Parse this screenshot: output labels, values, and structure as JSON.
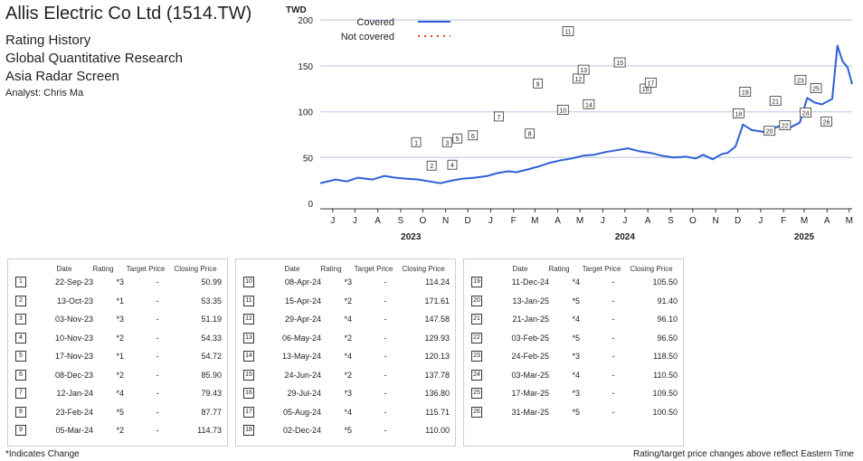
{
  "header": {
    "title": "Allis Electric Co Ltd (1514.TW)",
    "subtitle_lines": [
      "Rating History",
      "Global Quantitative Research",
      "Asia Radar Screen"
    ],
    "analyst": "Analyst: Chris Ma"
  },
  "table_headers": {
    "date": "Date",
    "rating": "Rating",
    "target_price": "Target Price",
    "closing_price": "Closing Price"
  },
  "events": [
    {
      "n": "1",
      "date": "22-Sep-23",
      "rating": "*3",
      "target": "-",
      "close": "50.99"
    },
    {
      "n": "2",
      "date": "13-Oct-23",
      "rating": "*1",
      "target": "-",
      "close": "53.35"
    },
    {
      "n": "3",
      "date": "03-Nov-23",
      "rating": "*3",
      "target": "-",
      "close": "51.19"
    },
    {
      "n": "4",
      "date": "10-Nov-23",
      "rating": "*2",
      "target": "-",
      "close": "54.33"
    },
    {
      "n": "5",
      "date": "17-Nov-23",
      "rating": "*1",
      "target": "-",
      "close": "54.72"
    },
    {
      "n": "6",
      "date": "08-Dec-23",
      "rating": "*2",
      "target": "-",
      "close": "85.90"
    },
    {
      "n": "7",
      "date": "12-Jan-24",
      "rating": "*4",
      "target": "-",
      "close": "79.43"
    },
    {
      "n": "8",
      "date": "23-Feb-24",
      "rating": "*5",
      "target": "-",
      "close": "87.77"
    },
    {
      "n": "9",
      "date": "05-Mar-24",
      "rating": "*2",
      "target": "-",
      "close": "114.73"
    },
    {
      "n": "10",
      "date": "08-Apr-24",
      "rating": "*3",
      "target": "-",
      "close": "114.24"
    },
    {
      "n": "11",
      "date": "15-Apr-24",
      "rating": "*2",
      "target": "-",
      "close": "171.61"
    },
    {
      "n": "12",
      "date": "29-Apr-24",
      "rating": "*4",
      "target": "-",
      "close": "147.58"
    },
    {
      "n": "13",
      "date": "06-May-24",
      "rating": "*2",
      "target": "-",
      "close": "129.93"
    },
    {
      "n": "14",
      "date": "13-May-24",
      "rating": "*4",
      "target": "-",
      "close": "120.13"
    },
    {
      "n": "15",
      "date": "24-Jun-24",
      "rating": "*2",
      "target": "-",
      "close": "137.78"
    },
    {
      "n": "16",
      "date": "29-Jul-24",
      "rating": "*3",
      "target": "-",
      "close": "136.80"
    },
    {
      "n": "17",
      "date": "05-Aug-24",
      "rating": "*4",
      "target": "-",
      "close": "115.71"
    },
    {
      "n": "18",
      "date": "02-Dec-24",
      "rating": "*5",
      "target": "-",
      "close": "110.00"
    },
    {
      "n": "19",
      "date": "11-Dec-24",
      "rating": "*4",
      "target": "-",
      "close": "105.50"
    },
    {
      "n": "20",
      "date": "13-Jan-25",
      "rating": "*5",
      "target": "-",
      "close": "91.40"
    },
    {
      "n": "21",
      "date": "21-Jan-25",
      "rating": "*4",
      "target": "-",
      "close": "96.10"
    },
    {
      "n": "22",
      "date": "03-Feb-25",
      "rating": "*5",
      "target": "-",
      "close": "96.50"
    },
    {
      "n": "23",
      "date": "24-Feb-25",
      "rating": "*3",
      "target": "-",
      "close": "118.50"
    },
    {
      "n": "24",
      "date": "03-Mar-25",
      "rating": "*4",
      "target": "-",
      "close": "110.50"
    },
    {
      "n": "25",
      "date": "17-Mar-25",
      "rating": "*3",
      "target": "-",
      "close": "109.50"
    },
    {
      "n": "26",
      "date": "31-Mar-25",
      "rating": "*5",
      "target": "-",
      "close": "100.50"
    }
  ],
  "footer": {
    "left": "*Indicates Change",
    "right": "Rating/target price changes above reflect Eastern Time"
  },
  "chart_data": {
    "type": "line",
    "unit_label": "TWD",
    "yticks": [
      0,
      50,
      100,
      150,
      200
    ],
    "ylim": [
      0,
      210
    ],
    "xlim": [
      "2023-05-15",
      "2025-05-05"
    ],
    "month_ticks": [
      {
        "label": "J",
        "date": "2023-06-01"
      },
      {
        "label": "J",
        "date": "2023-07-01"
      },
      {
        "label": "A",
        "date": "2023-08-01"
      },
      {
        "label": "S",
        "date": "2023-09-01"
      },
      {
        "label": "O",
        "date": "2023-10-01"
      },
      {
        "label": "N",
        "date": "2023-11-01"
      },
      {
        "label": "D",
        "date": "2023-12-01"
      },
      {
        "label": "J",
        "date": "2024-01-01"
      },
      {
        "label": "F",
        "date": "2024-02-01"
      },
      {
        "label": "M",
        "date": "2024-03-01"
      },
      {
        "label": "A",
        "date": "2024-04-01"
      },
      {
        "label": "M",
        "date": "2024-05-01"
      },
      {
        "label": "J",
        "date": "2024-06-01"
      },
      {
        "label": "J",
        "date": "2024-07-01"
      },
      {
        "label": "A",
        "date": "2024-08-01"
      },
      {
        "label": "S",
        "date": "2024-09-01"
      },
      {
        "label": "O",
        "date": "2024-10-01"
      },
      {
        "label": "N",
        "date": "2024-11-01"
      },
      {
        "label": "D",
        "date": "2024-12-01"
      },
      {
        "label": "J",
        "date": "2025-01-01"
      },
      {
        "label": "F",
        "date": "2025-02-01"
      },
      {
        "label": "M",
        "date": "2025-03-01"
      },
      {
        "label": "A",
        "date": "2025-04-01"
      },
      {
        "label": "M",
        "date": "2025-05-01"
      }
    ],
    "years": [
      {
        "label": "2023",
        "date": "2023-09-15"
      },
      {
        "label": "2024",
        "date": "2024-07-01"
      },
      {
        "label": "2025",
        "date": "2025-03-01"
      }
    ],
    "legend": [
      {
        "name": "Covered",
        "color": "#2d5fd6",
        "style": "solid"
      },
      {
        "name": "Not covered",
        "color": "#e0443a",
        "style": "dotted"
      }
    ],
    "legend_position": "top-left",
    "grid": "horizontal",
    "series": [
      {
        "name": "Covered",
        "color": "#2d5fd6",
        "points": [
          [
            "2023-05-15",
            22
          ],
          [
            "2023-06-05",
            26
          ],
          [
            "2023-06-20",
            24
          ],
          [
            "2023-07-05",
            28
          ],
          [
            "2023-07-25",
            26
          ],
          [
            "2023-08-10",
            30
          ],
          [
            "2023-08-25",
            28
          ],
          [
            "2023-09-08",
            27
          ],
          [
            "2023-09-25",
            26
          ],
          [
            "2023-10-10",
            24
          ],
          [
            "2023-10-25",
            22
          ],
          [
            "2023-11-10",
            25
          ],
          [
            "2023-11-25",
            27
          ],
          [
            "2023-12-10",
            28
          ],
          [
            "2023-12-28",
            30
          ],
          [
            "2024-01-10",
            33
          ],
          [
            "2024-01-25",
            35
          ],
          [
            "2024-02-05",
            34
          ],
          [
            "2024-02-20",
            37
          ],
          [
            "2024-03-05",
            40
          ],
          [
            "2024-03-20",
            44
          ],
          [
            "2024-04-05",
            47
          ],
          [
            "2024-04-20",
            49
          ],
          [
            "2024-05-05",
            52
          ],
          [
            "2024-05-20",
            53
          ],
          [
            "2024-06-05",
            56
          ],
          [
            "2024-06-20",
            58
          ],
          [
            "2024-07-05",
            60
          ],
          [
            "2024-07-20",
            57
          ],
          [
            "2024-08-05",
            55
          ],
          [
            "2024-08-20",
            52
          ],
          [
            "2024-09-05",
            50
          ],
          [
            "2024-09-22",
            51
          ],
          [
            "2024-10-05",
            49
          ],
          [
            "2024-10-15",
            53
          ],
          [
            "2024-10-28",
            48
          ],
          [
            "2024-11-03",
            51
          ],
          [
            "2024-11-10",
            54
          ],
          [
            "2024-11-17",
            55
          ],
          [
            "2024-11-28",
            62
          ],
          [
            "2024-12-08",
            86
          ],
          [
            "2024-12-20",
            80
          ],
          [
            "2025-01-05",
            78
          ],
          [
            "2025-01-12",
            79
          ],
          [
            "2025-01-25",
            84
          ],
          [
            "2025-02-08",
            82
          ],
          [
            "2025-02-23",
            88
          ],
          [
            "2025-03-05",
            115
          ],
          [
            "2025-03-15",
            110
          ],
          [
            "2025-03-25",
            108
          ],
          [
            "2025-04-08",
            114
          ],
          [
            "2025-04-15",
            172
          ],
          [
            "2025-04-22",
            155
          ],
          [
            "2025-04-29",
            148
          ],
          [
            "2025-05-05",
            130
          ]
        ]
      }
    ],
    "annotations": [
      {
        "n": "1",
        "date": "2023-09-22",
        "value": 51
      },
      {
        "n": "2",
        "date": "2023-10-13",
        "value": 53
      },
      {
        "n": "3",
        "date": "2023-11-03",
        "value": 51
      },
      {
        "n": "4",
        "date": "2023-11-10",
        "value": 54
      },
      {
        "n": "5",
        "date": "2023-11-17",
        "value": 55
      },
      {
        "n": "6",
        "date": "2023-12-08",
        "value": 86
      },
      {
        "n": "7",
        "date": "2024-01-12",
        "value": 79
      },
      {
        "n": "8",
        "date": "2024-02-23",
        "value": 88
      },
      {
        "n": "9",
        "date": "2024-03-05",
        "value": 115
      },
      {
        "n": "10",
        "date": "2024-04-08",
        "value": 114
      },
      {
        "n": "11",
        "date": "2024-04-15",
        "value": 172
      },
      {
        "n": "12",
        "date": "2024-04-29",
        "value": 148
      },
      {
        "n": "13",
        "date": "2024-05-06",
        "value": 130
      },
      {
        "n": "14",
        "date": "2024-05-13",
        "value": 120
      },
      {
        "n": "15",
        "date": "2024-06-24",
        "value": 138
      },
      {
        "n": "16",
        "date": "2024-07-29",
        "value": 137
      },
      {
        "n": "17",
        "date": "2024-08-05",
        "value": 116
      },
      {
        "n": "18",
        "date": "2024-12-02",
        "value": 110
      },
      {
        "n": "19",
        "date": "2024-12-11",
        "value": 106
      },
      {
        "n": "20",
        "date": "2025-01-13",
        "value": 91
      },
      {
        "n": "21",
        "date": "2025-01-21",
        "value": 96
      },
      {
        "n": "22",
        "date": "2025-02-03",
        "value": 97
      },
      {
        "n": "23",
        "date": "2025-02-24",
        "value": 119
      },
      {
        "n": "24",
        "date": "2025-03-03",
        "value": 111
      },
      {
        "n": "25",
        "date": "2025-03-17",
        "value": 110
      },
      {
        "n": "26",
        "date": "2025-03-31",
        "value": 101
      }
    ]
  }
}
